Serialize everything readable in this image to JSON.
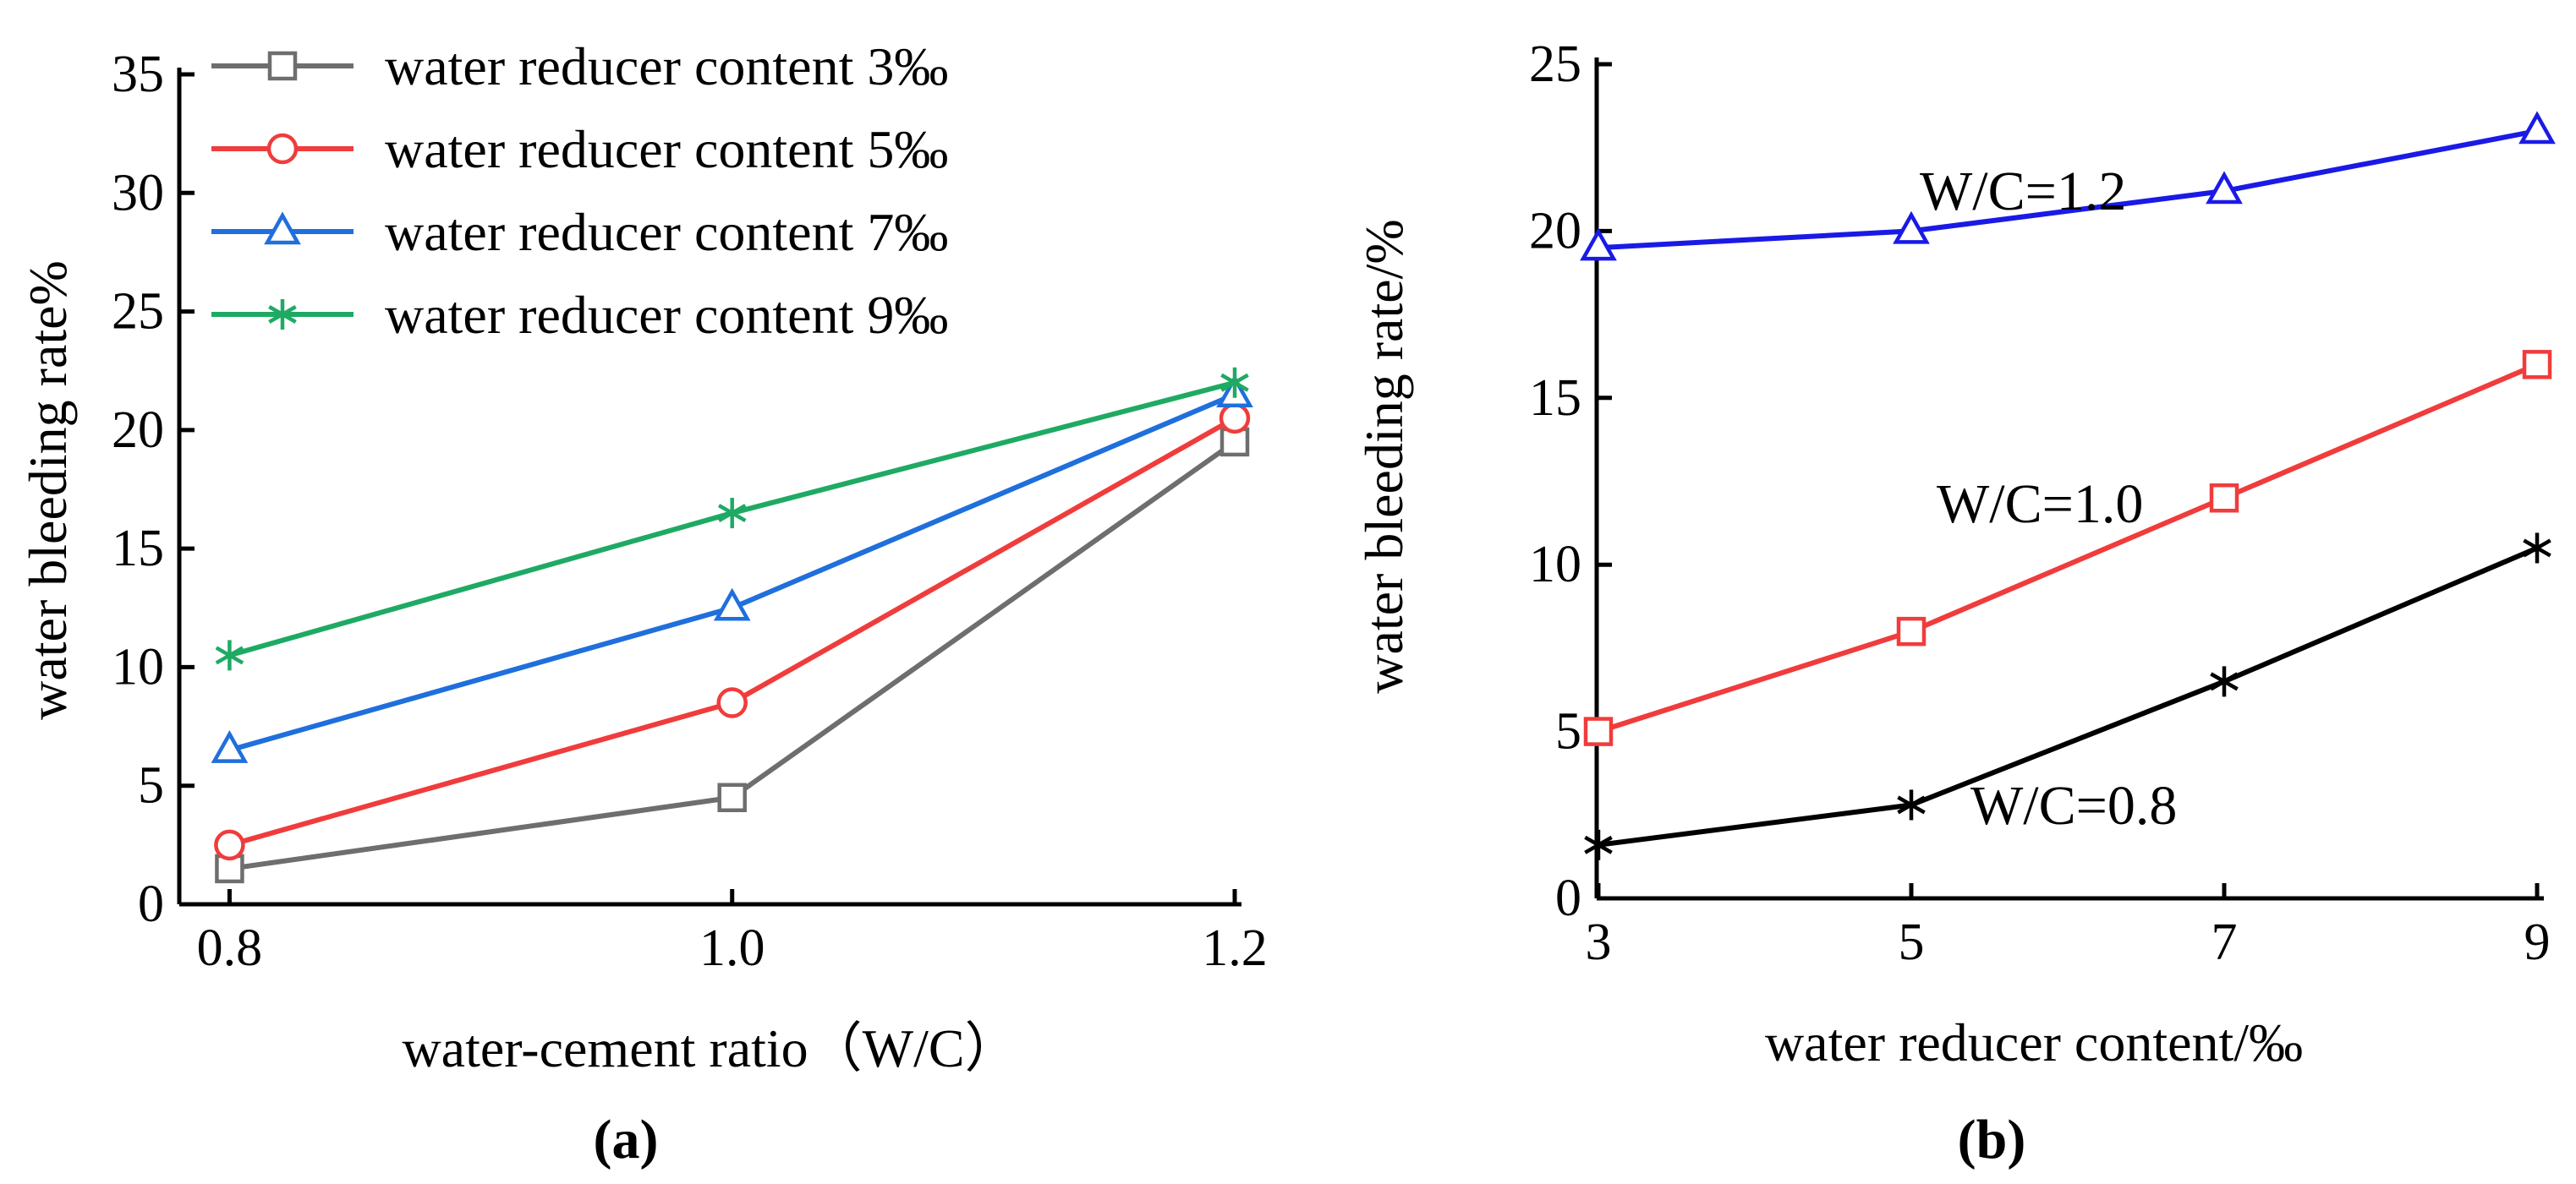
{
  "chart_data": [
    {
      "type": "line",
      "panel_label": "(a)",
      "xlabel": "water-cement ratio（W/C）",
      "ylabel": "water bleeding rate%",
      "categories": [
        "0.8",
        "1.0",
        "1.2"
      ],
      "x": [
        0.8,
        1.0,
        1.2
      ],
      "xlim": [
        0.78,
        1.2
      ],
      "ylim": [
        0,
        35
      ],
      "yticks": [
        0,
        5,
        10,
        15,
        20,
        25,
        30,
        35
      ],
      "legend_position": "top-left",
      "series": [
        {
          "name": "water reducer content 3‰",
          "color": "#6e6e6e",
          "marker": "square",
          "values": [
            1.5,
            4.5,
            19.5
          ]
        },
        {
          "name": "water reducer content 5‰",
          "color": "#f03c3c",
          "marker": "circle",
          "values": [
            2.5,
            8.5,
            20.5
          ]
        },
        {
          "name": "water reducer content 7‰",
          "color": "#1f6fdc",
          "marker": "triangle",
          "values": [
            6.5,
            12.5,
            21.5
          ]
        },
        {
          "name": "water reducer content 9‰",
          "color": "#1faa64",
          "marker": "asterisk",
          "values": [
            10.5,
            16.5,
            22.0
          ]
        }
      ]
    },
    {
      "type": "line",
      "panel_label": "(b)",
      "xlabel": "water reducer content/‰",
      "ylabel": "water bleeding rate/%",
      "x": [
        3,
        5,
        7,
        9
      ],
      "xticks": [
        "3",
        "5",
        "7",
        "9"
      ],
      "xlim": [
        3,
        9
      ],
      "ylim": [
        0,
        25
      ],
      "yticks": [
        0,
        5,
        10,
        15,
        20,
        25
      ],
      "series": [
        {
          "name": "W/C=1.2",
          "color": "#1a1ae6",
          "marker": "triangle",
          "values": [
            19.5,
            20.0,
            21.2,
            23.0
          ]
        },
        {
          "name": "W/C=1.0",
          "color": "#f03c3c",
          "marker": "square",
          "values": [
            5.0,
            8.0,
            12.0,
            16.0
          ]
        },
        {
          "name": "W/C=0.8",
          "color": "#000000",
          "marker": "asterisk",
          "values": [
            1.6,
            2.8,
            6.5,
            10.5
          ]
        }
      ]
    }
  ]
}
